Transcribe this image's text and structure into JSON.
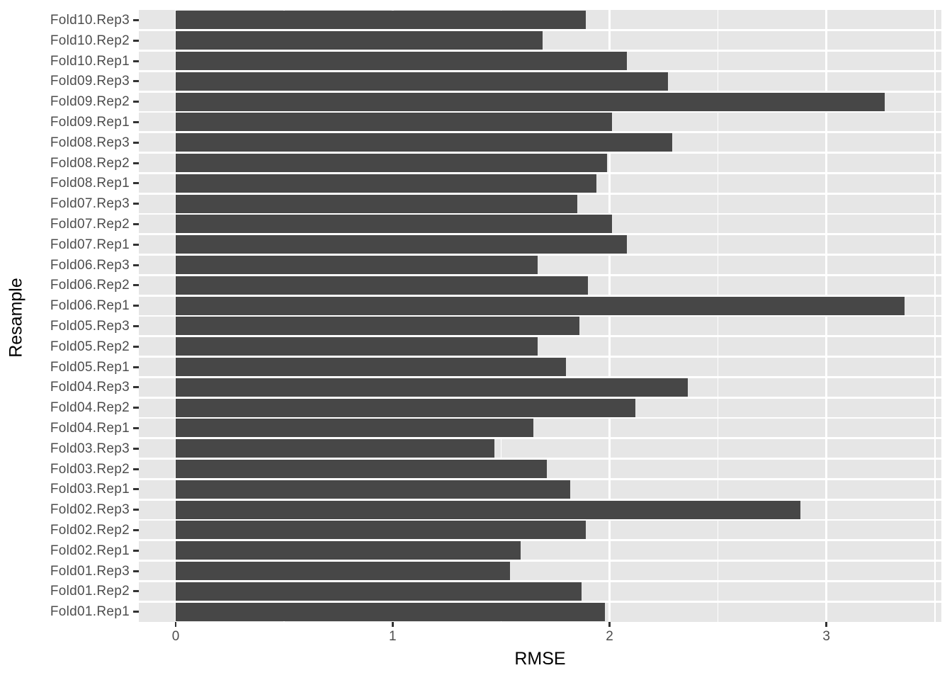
{
  "chart_data": {
    "type": "bar",
    "orientation": "horizontal",
    "title": "",
    "xlabel": "RMSE",
    "ylabel": "Resample",
    "categories_top_to_bottom": [
      "Fold10.Rep3",
      "Fold10.Rep2",
      "Fold10.Rep1",
      "Fold09.Rep3",
      "Fold09.Rep2",
      "Fold09.Rep1",
      "Fold08.Rep3",
      "Fold08.Rep2",
      "Fold08.Rep1",
      "Fold07.Rep3",
      "Fold07.Rep2",
      "Fold07.Rep1",
      "Fold06.Rep3",
      "Fold06.Rep2",
      "Fold06.Rep1",
      "Fold05.Rep3",
      "Fold05.Rep2",
      "Fold05.Rep1",
      "Fold04.Rep3",
      "Fold04.Rep2",
      "Fold04.Rep1",
      "Fold03.Rep3",
      "Fold03.Rep2",
      "Fold03.Rep1",
      "Fold02.Rep3",
      "Fold02.Rep2",
      "Fold02.Rep1",
      "Fold01.Rep3",
      "Fold01.Rep2",
      "Fold01.Rep1"
    ],
    "values": [
      1.89,
      1.69,
      2.08,
      2.27,
      3.27,
      2.01,
      2.29,
      1.99,
      1.94,
      1.85,
      2.01,
      2.08,
      1.67,
      1.9,
      3.36,
      1.86,
      1.67,
      1.8,
      2.36,
      2.12,
      1.65,
      1.47,
      1.71,
      1.82,
      2.88,
      1.89,
      1.59,
      1.54,
      1.87,
      1.98
    ],
    "xlim": [
      -0.17,
      3.53
    ],
    "x_major_ticks": [
      0,
      1,
      2,
      3
    ],
    "x_minor_gridlines": [
      0.5,
      1.5,
      2.5,
      3.5
    ],
    "grid": true,
    "legend": "none",
    "colors": {
      "bar_fill": "#474747",
      "panel_background": "#E6E6E6",
      "gridline_major": "#FFFFFF",
      "gridline_minor": "#FFFFFF",
      "row_separator": "#FFFFFF",
      "tick_label": "#4D4D4D",
      "axis_title": "#000000",
      "tick_mark": "#333333",
      "plot_background": "#FFFFFF"
    }
  }
}
